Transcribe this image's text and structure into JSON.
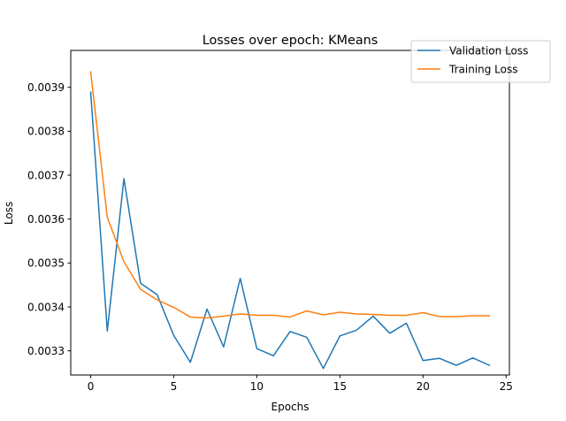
{
  "chart_data": {
    "type": "line",
    "title": "Losses over epoch: KMeans",
    "xlabel": "Epochs",
    "ylabel": "Loss",
    "xlim": [
      -1.2,
      25.2
    ],
    "ylim": [
      0.003245,
      0.003984
    ],
    "xticks": [
      0,
      5,
      10,
      15,
      20,
      25
    ],
    "xtick_labels": [
      "0",
      "5",
      "10",
      "15",
      "20",
      "25"
    ],
    "yticks": [
      0.0033,
      0.0034,
      0.0035,
      0.0036,
      0.0037,
      0.0038,
      0.0039
    ],
    "ytick_labels": [
      "0.0033",
      "0.0034",
      "0.0035",
      "0.0036",
      "0.0037",
      "0.0038",
      "0.0039"
    ],
    "grid": false,
    "legend_position": "top-right",
    "x": [
      0,
      1,
      2,
      3,
      4,
      5,
      6,
      7,
      8,
      9,
      10,
      11,
      12,
      13,
      14,
      15,
      16,
      17,
      18,
      19,
      20,
      21,
      22,
      23,
      24
    ],
    "series": [
      {
        "name": "Validation Loss",
        "color": "#1f77b4",
        "values": [
          0.003889,
          0.003345,
          0.003692,
          0.003454,
          0.003428,
          0.003335,
          0.003274,
          0.003395,
          0.003309,
          0.003465,
          0.003305,
          0.003289,
          0.003344,
          0.003331,
          0.00326,
          0.003334,
          0.003347,
          0.003379,
          0.00334,
          0.003363,
          0.003278,
          0.003283,
          0.003267,
          0.003284,
          0.003267
        ]
      },
      {
        "name": "Training Loss",
        "color": "#ff7f0e",
        "values": [
          0.003935,
          0.003604,
          0.003503,
          0.00344,
          0.003416,
          0.003399,
          0.003377,
          0.003375,
          0.003379,
          0.003384,
          0.003381,
          0.003381,
          0.003377,
          0.003391,
          0.003382,
          0.003388,
          0.003384,
          0.003383,
          0.003381,
          0.003381,
          0.003387,
          0.003378,
          0.003378,
          0.00338,
          0.00338
        ]
      }
    ]
  }
}
